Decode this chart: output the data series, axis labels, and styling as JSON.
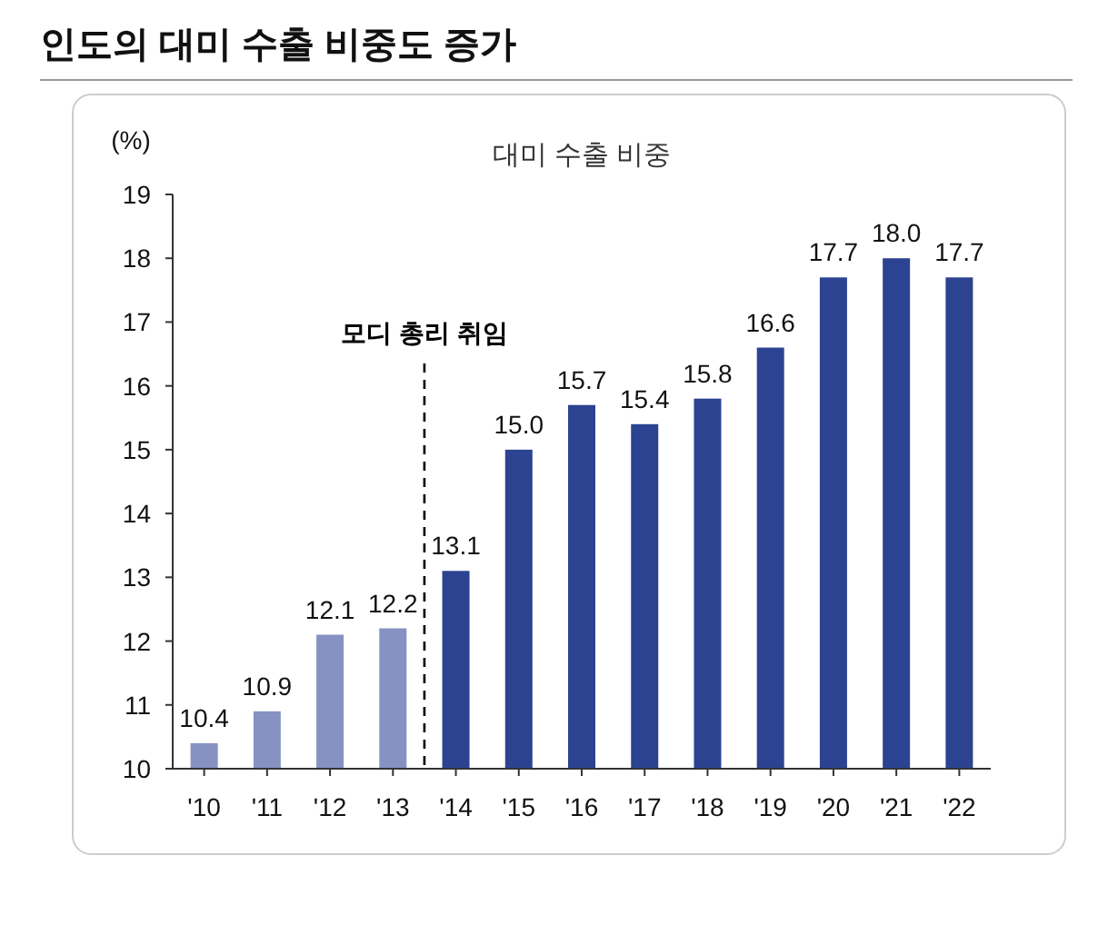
{
  "chart_data": {
    "type": "bar",
    "title": "인도의 대미 수출 비중도 증가",
    "subtitle": "대미 수출 비중",
    "ylabel": "(%)",
    "x": [
      2010,
      2011,
      2012,
      2013,
      2014,
      2015,
      2016,
      2017,
      2018,
      2019,
      2020,
      2021,
      2022
    ],
    "values": [
      10.4,
      10.9,
      12.1,
      12.2,
      13.1,
      15.0,
      15.7,
      15.4,
      15.8,
      16.6,
      17.7,
      18.0,
      17.7
    ],
    "value_labels": [
      "10.4",
      "10.9",
      "12.1",
      "12.2",
      "13.1",
      "15.0",
      "15.7",
      "15.4",
      "15.8",
      "16.6",
      "17.7",
      "18.0",
      "17.7"
    ],
    "colors": [
      "#8592c2",
      "#8592c2",
      "#8592c2",
      "#8592c2",
      "#2b4391",
      "#2b4391",
      "#2b4391",
      "#2b4391",
      "#2b4391",
      "#2b4391",
      "#2b4391",
      "#2b4391",
      "#2b4391"
    ],
    "xlim": [
      2009.5,
      2022.5
    ],
    "xticks": [
      {
        "value": 2010,
        "label": "'10"
      },
      {
        "value": 2011,
        "label": "'11"
      },
      {
        "value": 2012,
        "label": "'12"
      },
      {
        "value": 2013,
        "label": "'13"
      },
      {
        "value": 2014,
        "label": "'14"
      },
      {
        "value": 2015,
        "label": "'15"
      },
      {
        "value": 2016,
        "label": "'16"
      },
      {
        "value": 2017,
        "label": "'17"
      },
      {
        "value": 2018,
        "label": "'18"
      },
      {
        "value": 2019,
        "label": "'19"
      },
      {
        "value": 2020,
        "label": "'20"
      },
      {
        "value": 2021,
        "label": "'21"
      },
      {
        "value": 2022,
        "label": "'22"
      }
    ],
    "ylim": [
      10,
      19
    ],
    "yticks": [
      10,
      11,
      12,
      13,
      14,
      15,
      16,
      17,
      18,
      19
    ],
    "ref_lines": [
      {
        "axis": "x",
        "value": 2013.5,
        "label": "모디 총리 취임",
        "color": "#000000",
        "line_style": "dashed"
      }
    ],
    "grid": false
  }
}
